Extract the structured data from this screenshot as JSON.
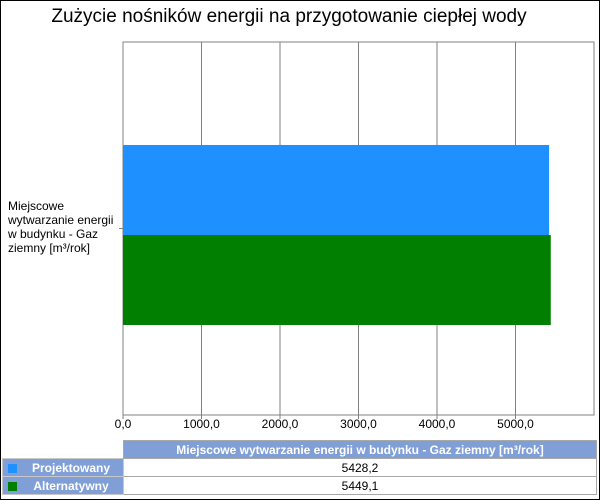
{
  "chart_data": {
    "type": "bar",
    "orientation": "horizontal",
    "title": "Zużycie nośników energii na przygotowanie ciepłej wody",
    "categories": [
      "Miejscowe wytwarzanie energii w budynku - Gaz ziemny [m³/rok]"
    ],
    "series": [
      {
        "name": "Projektowany",
        "values": [
          5428.2
        ],
        "color": "#1e90ff"
      },
      {
        "name": "Alternatywny",
        "values": [
          5449.1
        ],
        "color": "#007f00"
      }
    ],
    "xlim": [
      0,
      6000
    ],
    "xticks": [
      "0,0",
      "1000,0",
      "2000,0",
      "3000,0",
      "4000,0",
      "5000,0"
    ],
    "grid": true,
    "legend": "table-below"
  },
  "table": {
    "header": "Miejscowe wytwarzanie energii w budynku - Gaz ziemny [m³/rok]",
    "rows": [
      {
        "label": "Projektowany",
        "value": "5428,2",
        "color": "#1e90ff"
      },
      {
        "label": "Alternatywny",
        "value": "5449,1",
        "color": "#007f00"
      }
    ]
  }
}
